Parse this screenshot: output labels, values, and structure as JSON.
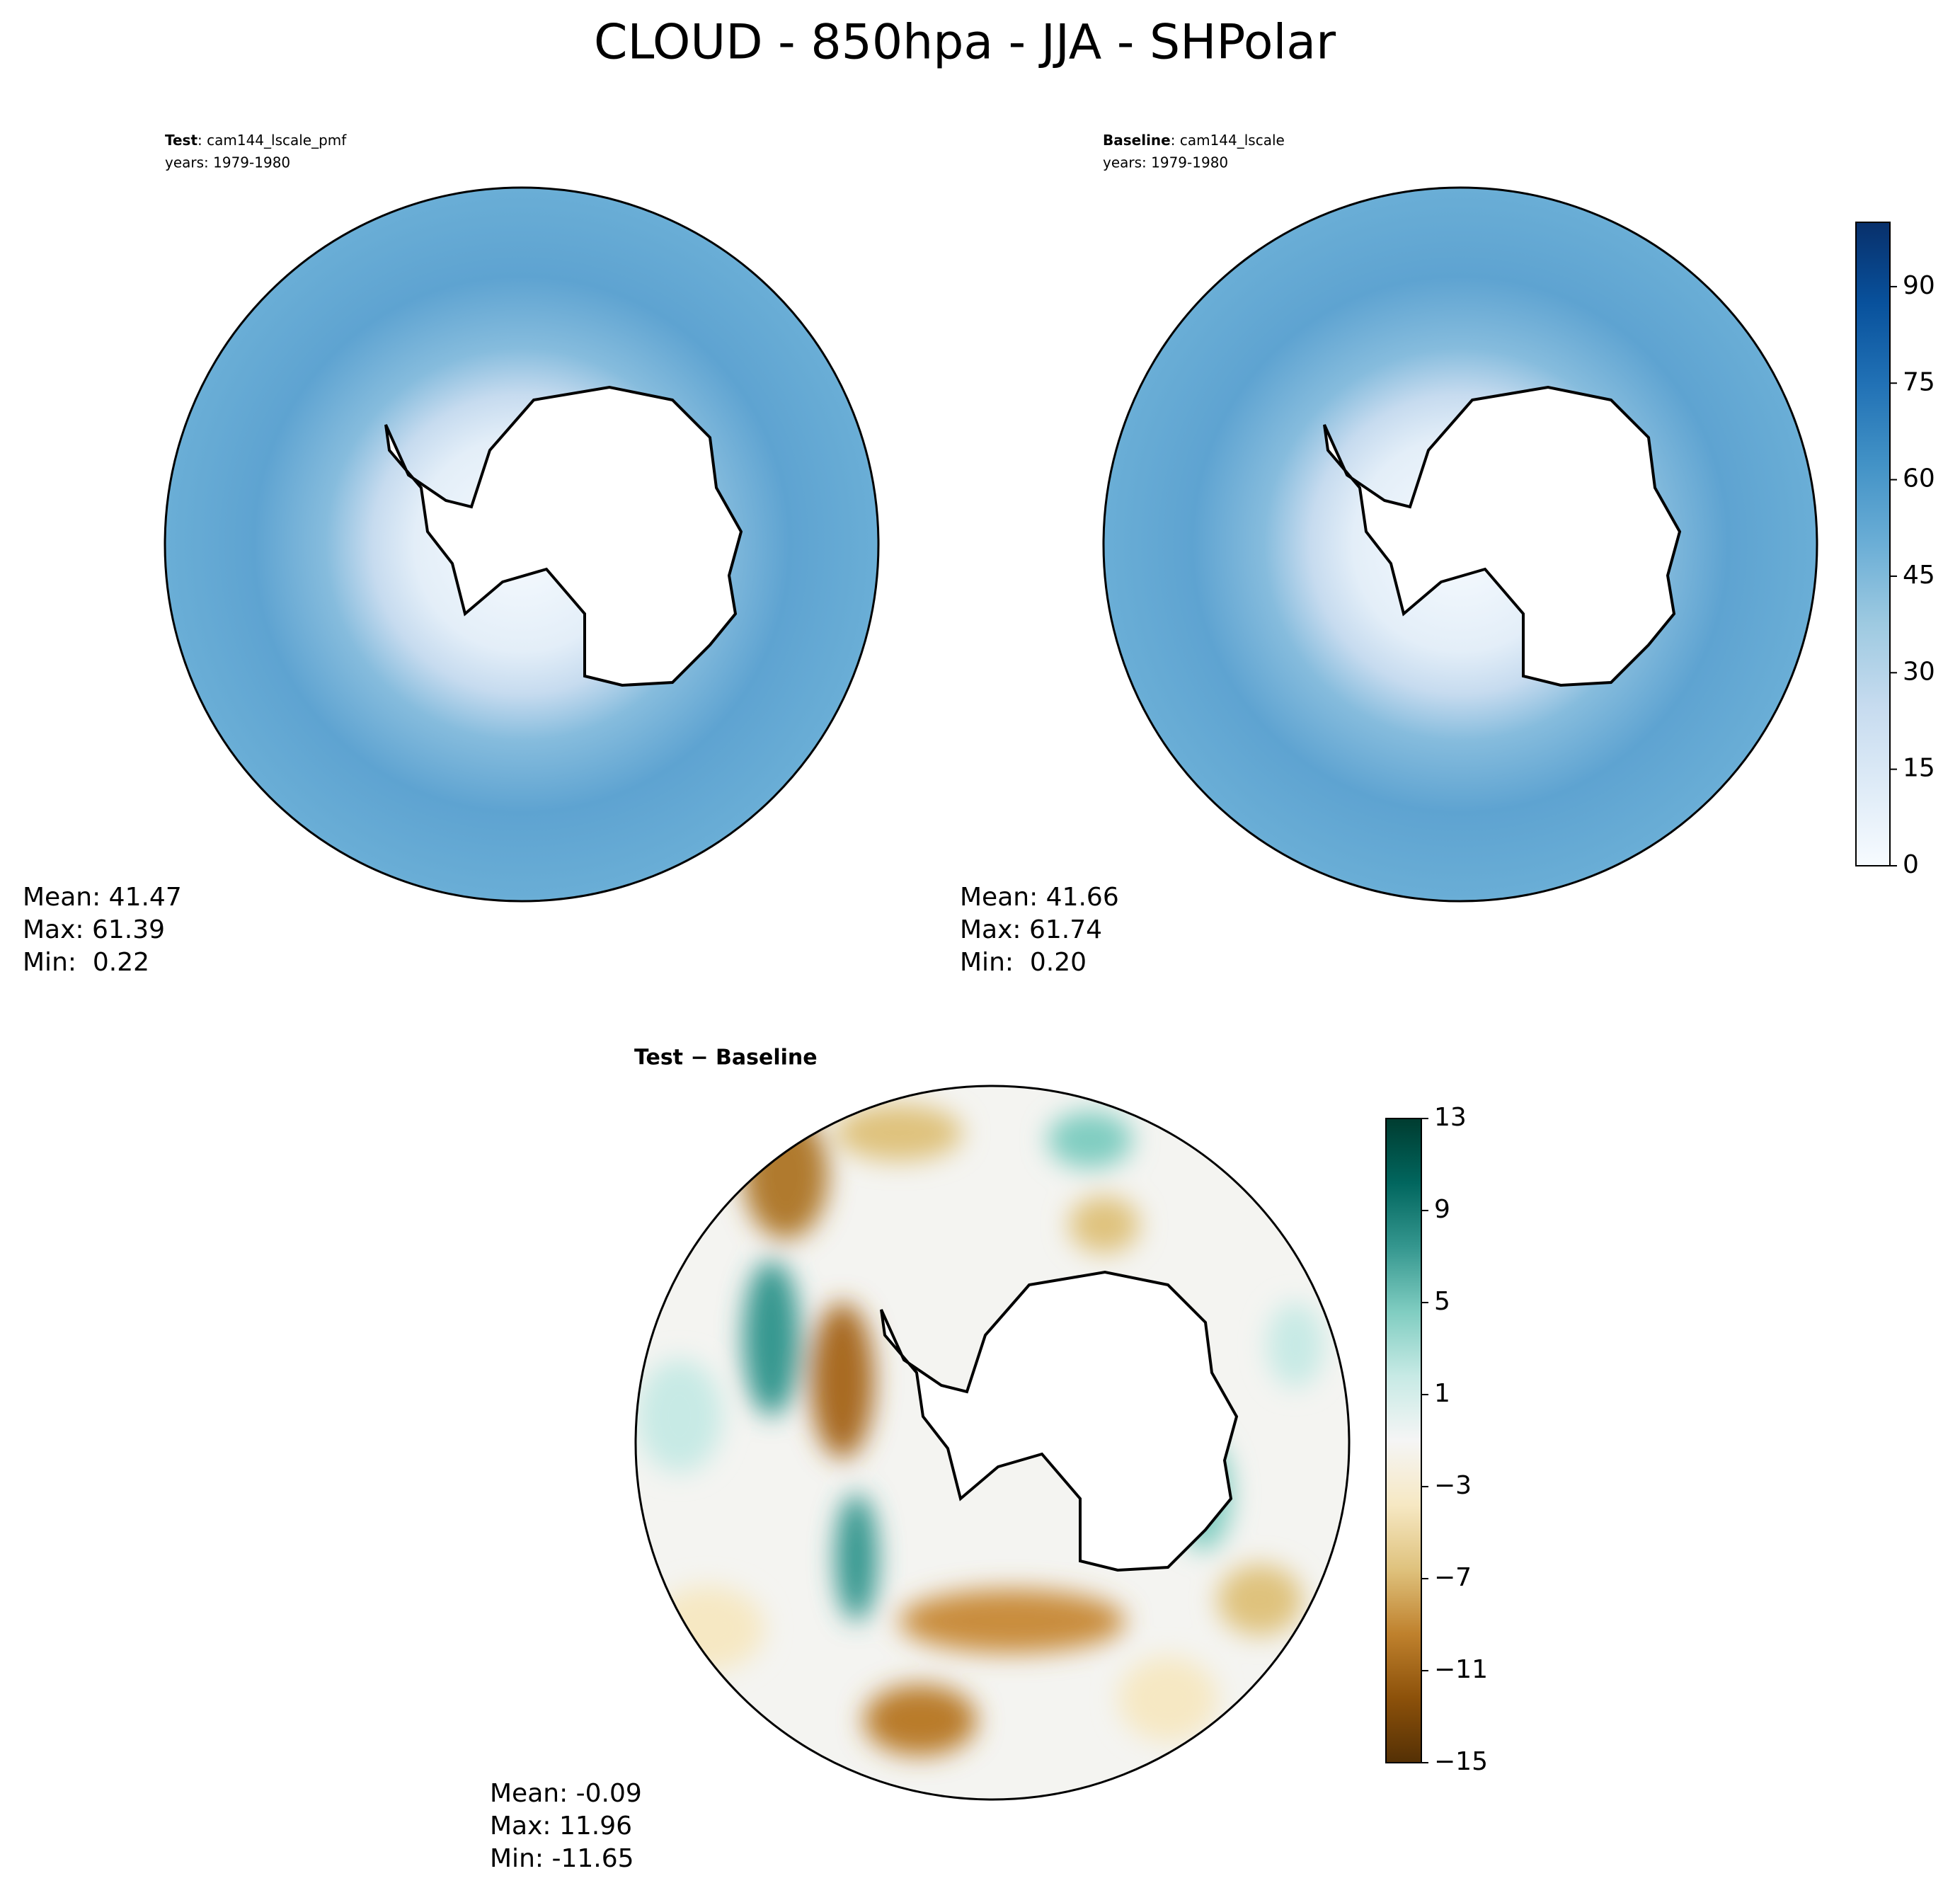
{
  "title": "CLOUD - 850hpa - JJA - SHPolar",
  "panels": [
    {
      "tag": "Test",
      "case": ": cam144_lscale_pmf",
      "years": "years: 1979-1980",
      "stats": [
        "Mean: 41.47",
        "Max: 61.39",
        "Min:  0.22"
      ]
    },
    {
      "tag": "Baseline",
      "case": ": cam144_lscale",
      "years": "years: 1979-1980",
      "stats": [
        "Mean: 41.66",
        "Max: 61.74",
        "Min:  0.20"
      ]
    },
    {
      "heading": "Test − Baseline",
      "stats": [
        "Mean: -0.09",
        "Max: 11.96",
        "Min: -11.65"
      ]
    }
  ],
  "colorbars": [
    {
      "clim": [
        0,
        100
      ],
      "ticks": [
        0,
        15,
        30,
        45,
        60,
        75,
        90
      ],
      "colors": [
        "#f7fbff",
        "#deebf7",
        "#c6dbef",
        "#9ecae1",
        "#6baed6",
        "#4292c6",
        "#2171b5",
        "#08519c",
        "#08306b"
      ]
    },
    {
      "clim": [
        -15,
        13
      ],
      "ticks": [
        {
          "value": -15,
          "label": "−15"
        },
        {
          "value": -11,
          "label": "−11"
        },
        {
          "value": -7,
          "label": "−7"
        },
        {
          "value": -3,
          "label": "−3"
        },
        1,
        5,
        9,
        13
      ],
      "colors": [
        "#543005",
        "#8c510a",
        "#bf812d",
        "#dfc27d",
        "#f6e8c3",
        "#f5f5f5",
        "#c7eae5",
        "#80cdc1",
        "#35978f",
        "#01665e",
        "#003c30"
      ]
    }
  ]
}
